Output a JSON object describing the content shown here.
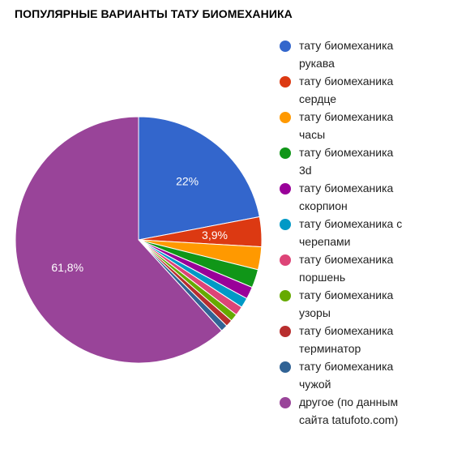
{
  "chart_data": {
    "type": "pie",
    "title": "ПОПУЛЯРНЫЕ ВАРИАНТЫ ТАТУ БИОМЕХАНИКА",
    "legend_position": "right",
    "slices": [
      {
        "label": "тату биомеханика рукава",
        "value": 22.0,
        "display": "22%",
        "color": "#3366cc"
      },
      {
        "label": "тату биомеханика сердце",
        "value": 3.9,
        "display": "3,9%",
        "color": "#dc3912"
      },
      {
        "label": "тату биомеханика часы",
        "value": 3.0,
        "display": "",
        "color": "#ff9900"
      },
      {
        "label": "тату биомеханика 3d",
        "value": 2.4,
        "display": "",
        "color": "#109618"
      },
      {
        "label": "тату биомеханика скорпион",
        "value": 1.6,
        "display": "",
        "color": "#990099"
      },
      {
        "label": "тату биомеханика с черепами",
        "value": 1.3,
        "display": "",
        "color": "#0099c6"
      },
      {
        "label": "тату биомеханика поршень",
        "value": 1.2,
        "display": "",
        "color": "#dd4477"
      },
      {
        "label": "тату биомеханика узоры",
        "value": 1.0,
        "display": "",
        "color": "#66aa00"
      },
      {
        "label": "тату биомеханика терминатор",
        "value": 0.9,
        "display": "",
        "color": "#b82e2e"
      },
      {
        "label": "тату биомеханика чужой",
        "value": 0.9,
        "display": "",
        "color": "#316395"
      },
      {
        "label": "другое (по данным сайта tatufoto.com)",
        "value": 61.8,
        "display": "61,8%",
        "color": "#994499"
      }
    ],
    "legend": [
      [
        "тату биомеханика",
        "рукава"
      ],
      [
        "тату биомеханика",
        "сердце"
      ],
      [
        "тату биомеханика",
        "часы"
      ],
      [
        "тату биомеханика",
        "3d"
      ],
      [
        "тату биомеханика",
        "скорпион"
      ],
      [
        "тату биомеханика с",
        "черепами"
      ],
      [
        "тату биомеханика",
        "поршень"
      ],
      [
        "тату биомеханика",
        "узоры"
      ],
      [
        "тату биомеханика",
        "терминатор"
      ],
      [
        "тату биомеханика",
        "чужой"
      ],
      [
        "другое (по данным",
        "сайта tatufoto.com)"
      ]
    ]
  }
}
